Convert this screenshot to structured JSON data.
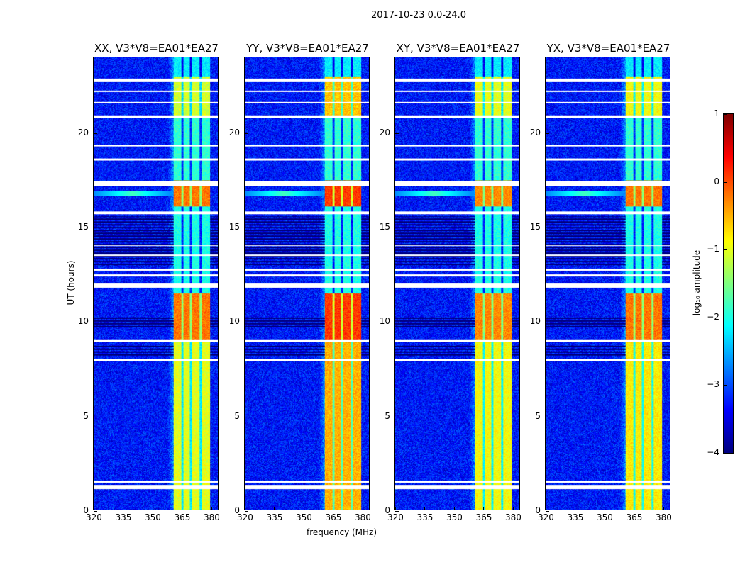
{
  "chart_data": {
    "type": "heatmap",
    "title": "2017-10-23 0.0-24.0",
    "xlabel": "frequency (MHz)",
    "ylabel": "UT (hours)",
    "xlim": [
      320,
      384
    ],
    "ylim": [
      0,
      24
    ],
    "xticks": [
      320,
      335,
      350,
      365,
      380
    ],
    "yticks": [
      0,
      5,
      10,
      15,
      20
    ],
    "panels": [
      {
        "title": "XX, V3*V8=EA01*EA27",
        "band_level": -1.2,
        "peak_level": -0.2
      },
      {
        "title": "YY, V3*V8=EA01*EA27",
        "band_level": -0.7,
        "peak_level": 0.1
      },
      {
        "title": "XY, V3*V8=EA01*EA27",
        "band_level": -1.1,
        "peak_level": -0.3
      },
      {
        "title": "YX, V3*V8=EA01*EA27",
        "band_level": -1.0,
        "peak_level": -0.2
      }
    ],
    "background_level": -3.3,
    "rfi_band_mhz": [
      361,
      380
    ],
    "band_gaps_mhz": [
      365.5,
      370,
      375
    ],
    "flagged_hours": [
      [
        1.1,
        1.3
      ],
      [
        1.45,
        1.55
      ],
      [
        7.9,
        8.0
      ],
      [
        8.9,
        9.0
      ],
      [
        11.8,
        12.0
      ],
      [
        12.4,
        12.5
      ],
      [
        12.7,
        12.8
      ],
      [
        13.5,
        13.55
      ],
      [
        14.0,
        14.05
      ],
      [
        15.7,
        15.85
      ],
      [
        17.2,
        17.45
      ],
      [
        18.55,
        18.65
      ],
      [
        19.3,
        19.35
      ],
      [
        20.8,
        20.95
      ],
      [
        21.6,
        21.65
      ],
      [
        22.2,
        22.25
      ],
      [
        22.75,
        22.9
      ]
    ],
    "dark_hours": [
      [
        8.2,
        8.8
      ],
      [
        9.7,
        10.3
      ],
      [
        13.0,
        15.6
      ]
    ],
    "bright_event_hour": 16.8,
    "colorbar": {
      "label": "log₁₀ amplitude",
      "colormap": "jet",
      "range": [
        -4,
        1
      ],
      "ticks": [
        "1",
        "0",
        "−1",
        "−2",
        "−3",
        "−4"
      ]
    }
  }
}
